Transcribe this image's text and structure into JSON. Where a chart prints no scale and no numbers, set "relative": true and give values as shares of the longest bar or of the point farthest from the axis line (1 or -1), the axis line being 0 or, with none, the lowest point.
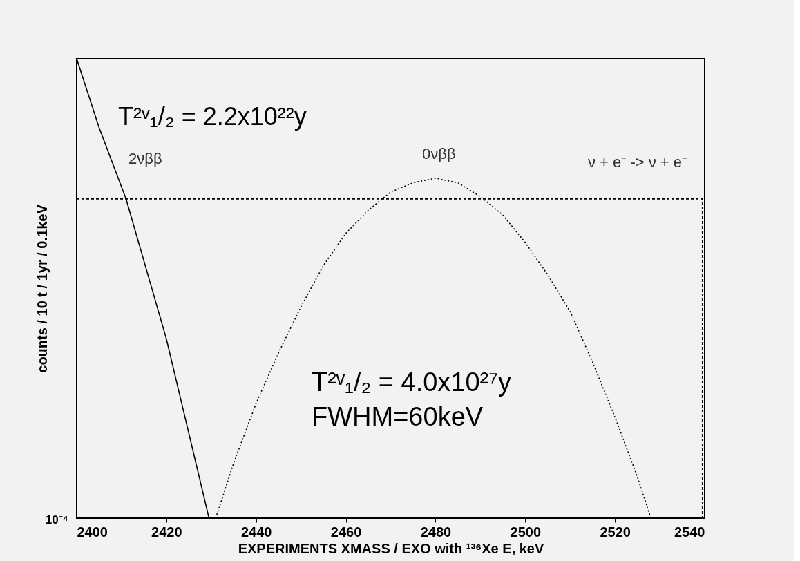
{
  "chart_data": {
    "type": "line",
    "relative": true,
    "xlabel": "EXPERIMENTS   XMASS / EXO with ¹³⁶Xe        E, keV",
    "ylabel": "counts / 10 t / 1yr / 0.1keV",
    "xlim": [
      2400,
      2540
    ],
    "xticks": [
      2400,
      2420,
      2440,
      2460,
      2480,
      2500,
      2520,
      2540
    ],
    "grid": false,
    "marker": "none",
    "annotations": [
      "T²ᵛ₁/₂ = 2.2x10²²y",
      "T²ᵛ₁/₂ = 4.0x10²⁷y",
      "FWHM=60keV",
      "10⁻⁴"
    ],
    "series": [
      {
        "name": "2νββ",
        "color": "#000000",
        "line_style": "solid",
        "x": [
          2400,
          2405,
          2411,
          2420,
          2429.5
        ],
        "values": [
          1,
          0.85,
          0.695,
          0.39,
          0
        ]
      },
      {
        "name": "0νββ",
        "color": "#000000",
        "line_style": "dotted",
        "x": [
          2431,
          2435,
          2440,
          2445,
          2450,
          2455,
          2460,
          2465,
          2470,
          2475,
          2480,
          2485,
          2490,
          2495,
          2500,
          2505,
          2510,
          2515,
          2520,
          2525,
          2528
        ],
        "values": [
          0,
          0.12,
          0.25,
          0.36,
          0.46,
          0.55,
          0.62,
          0.67,
          0.71,
          0.73,
          0.74,
          0.73,
          0.7,
          0.66,
          0.6,
          0.53,
          0.45,
          0.34,
          0.22,
          0.09,
          0
        ]
      },
      {
        "name": "ν + e⁻ -> ν + e⁻",
        "color": "#000000",
        "line_style": "dashed",
        "x": [
          2400,
          2539.5,
          2539.5
        ],
        "values": [
          0.695,
          0.695,
          0
        ]
      }
    ]
  }
}
